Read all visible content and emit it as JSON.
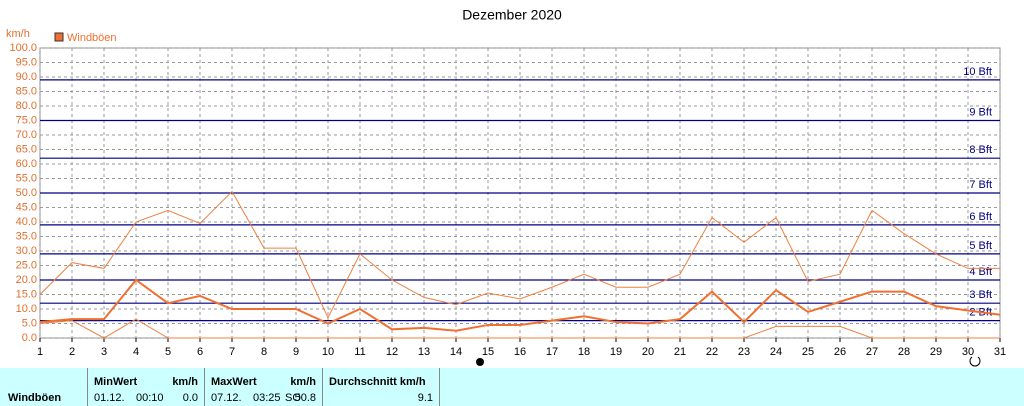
{
  "chart_data": {
    "type": "line",
    "title": "Dezember 2020",
    "y_unit": "km/h",
    "x": [
      1,
      2,
      3,
      4,
      5,
      6,
      7,
      8,
      9,
      10,
      11,
      12,
      13,
      14,
      15,
      16,
      17,
      18,
      19,
      20,
      21,
      22,
      23,
      24,
      25,
      26,
      27,
      28,
      29,
      30,
      31
    ],
    "xlim": [
      1,
      31
    ],
    "xticks": [
      1,
      2,
      3,
      4,
      5,
      6,
      7,
      8,
      9,
      10,
      11,
      12,
      13,
      14,
      15,
      16,
      17,
      18,
      19,
      20,
      21,
      22,
      23,
      24,
      25,
      26,
      27,
      28,
      29,
      30,
      31
    ],
    "ylim": [
      0,
      100
    ],
    "yticks": [
      {
        "value": 0,
        "label": "0.0"
      },
      {
        "value": 5,
        "label": "5.0"
      },
      {
        "value": 10,
        "label": "10.0"
      },
      {
        "value": 15,
        "label": "15.0"
      },
      {
        "value": 20,
        "label": "20.0"
      },
      {
        "value": 25,
        "label": "25.0"
      },
      {
        "value": 30,
        "label": "30.0"
      },
      {
        "value": 35,
        "label": "35.0"
      },
      {
        "value": 40,
        "label": "40.0"
      },
      {
        "value": 45,
        "label": "45.0"
      },
      {
        "value": 50,
        "label": "50.0"
      },
      {
        "value": 55,
        "label": "55.0"
      },
      {
        "value": 60,
        "label": "60.0"
      },
      {
        "value": 65,
        "label": "65.0"
      },
      {
        "value": 70,
        "label": "70.0"
      },
      {
        "value": 75,
        "label": "75.0"
      },
      {
        "value": 80,
        "label": "80.0"
      },
      {
        "value": 85,
        "label": "85.0"
      },
      {
        "value": 90,
        "label": "90.0"
      },
      {
        "value": 95,
        "label": "95.0"
      },
      {
        "value": 100,
        "label": "100.0"
      }
    ],
    "grid": true,
    "series": [
      {
        "name": "Windböen",
        "color": "#f07030",
        "width": 2,
        "values": [
          5.5,
          6.5,
          6.5,
          20,
          12,
          14.5,
          10,
          10,
          10,
          5,
          10,
          3,
          3.5,
          2.5,
          4.5,
          4.5,
          6,
          7.5,
          5.5,
          5,
          6.5,
          16,
          5.5,
          16.5,
          9,
          12.5,
          16,
          16,
          11,
          9.5,
          8
        ]
      },
      {
        "color": "#f08040",
        "width": 1,
        "values": [
          15,
          26,
          24,
          40,
          44,
          39.5,
          50.5,
          31,
          31,
          7,
          29,
          20,
          14,
          11.5,
          15.5,
          13.5,
          17.5,
          22,
          17.5,
          17.5,
          22,
          41.5,
          33,
          41.5,
          19.5,
          22,
          44,
          36,
          29,
          24,
          24
        ]
      },
      {
        "color": "#f08040",
        "width": 1,
        "values": [
          5,
          6,
          0,
          6.5,
          0,
          0,
          0,
          0,
          0,
          0,
          0,
          0,
          0,
          0,
          0,
          0,
          0,
          0,
          0,
          0,
          0,
          0,
          0,
          4,
          4,
          4,
          0,
          0,
          0,
          0,
          0
        ]
      }
    ],
    "reference_lines": [
      {
        "value": 6,
        "label": "2 Bft"
      },
      {
        "value": 12,
        "label": "3 Bft"
      },
      {
        "value": 20,
        "label": "4 Bft"
      },
      {
        "value": 29,
        "label": "5 Bft"
      },
      {
        "value": 39,
        "label": "6 Bft"
      },
      {
        "value": 50,
        "label": "7 Bft"
      },
      {
        "value": 62,
        "label": "8 Bft"
      },
      {
        "value": 75,
        "label": "9 Bft"
      },
      {
        "value": 89,
        "label": "10 Bft"
      }
    ],
    "reference_color": "#000080"
  },
  "stats": {
    "label": "Windböen",
    "columns": [
      {
        "header": "MinWert",
        "unit": "km/h",
        "date": "01.12.",
        "time": "00:10",
        "value": "0.0"
      },
      {
        "header": "MaxWert",
        "unit": "km/h",
        "date": "07.12.",
        "time": "03:25",
        "direction": "SO",
        "value": "50.8"
      },
      {
        "header": "Durchschnitt km/h",
        "value": "9.1"
      }
    ]
  }
}
